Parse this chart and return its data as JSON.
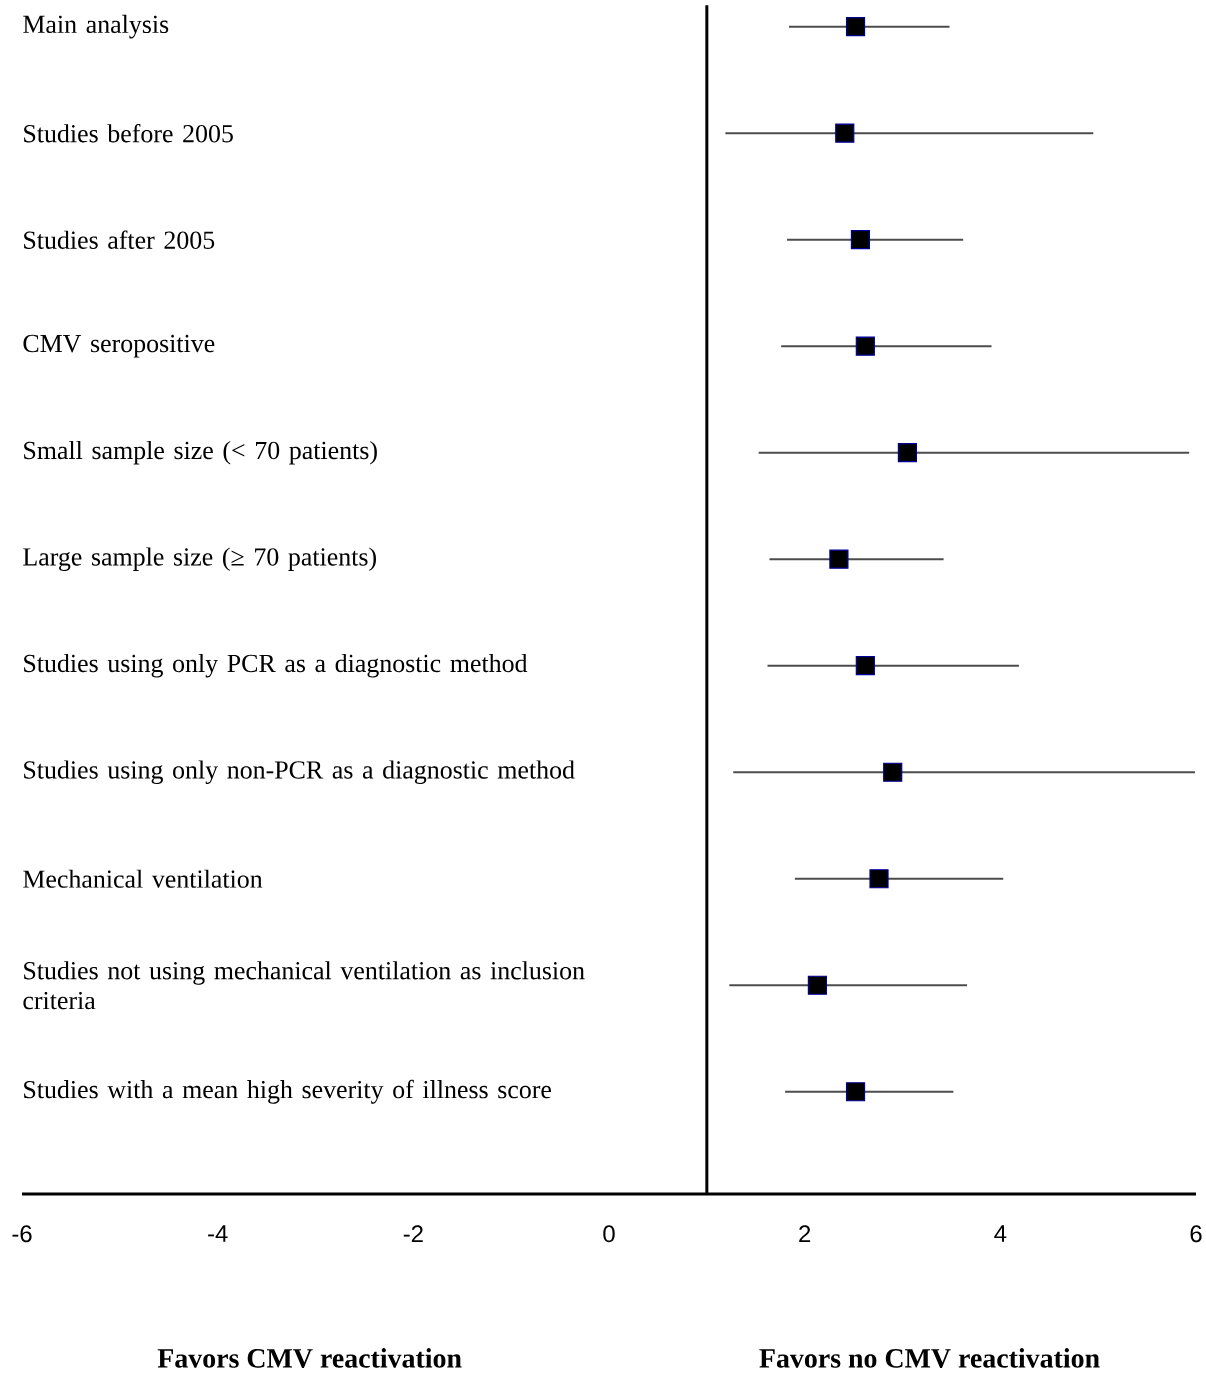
{
  "chart_data": {
    "type": "scatter",
    "orientation": "horizontal",
    "categories": [
      "Main analysis",
      "Studies before 2005",
      "Studies after 2005",
      "CMV seropositive",
      "Small sample size (< 70 patients)",
      "Large sample size (≥ 70 patients)",
      "Studies using only PCR as a diagnostic method",
      "Studies using only non-PCR as a diagnostic method",
      "Mechanical ventilation",
      "Studies not using mechanical ventilation as inclusion criteria",
      "Studies with a mean high severity of illness score"
    ],
    "values": [
      2.52,
      2.41,
      2.57,
      2.62,
      3.05,
      2.35,
      2.62,
      2.9,
      2.76,
      2.13,
      2.52
    ],
    "errors": [
      [
        1.84,
        3.48
      ],
      [
        1.19,
        4.95
      ],
      [
        1.82,
        3.62
      ],
      [
        1.76,
        3.91
      ],
      [
        1.53,
        5.93
      ],
      [
        1.64,
        3.42
      ],
      [
        1.62,
        4.19
      ],
      [
        1.27,
        5.99
      ],
      [
        1.9,
        4.03
      ],
      [
        1.23,
        3.66
      ],
      [
        1.8,
        3.52
      ]
    ],
    "color": "#000000",
    "marker": "square",
    "xlim": [
      -6,
      6
    ],
    "xticks": [
      -6,
      -4,
      -2,
      0,
      2,
      4,
      6
    ],
    "ref_lines": [
      {
        "axis": "x",
        "value": 1,
        "color": "#000000"
      }
    ],
    "annotations": [
      "Favors CMV reactivation",
      "Favors no CMV reactivation"
    ]
  }
}
